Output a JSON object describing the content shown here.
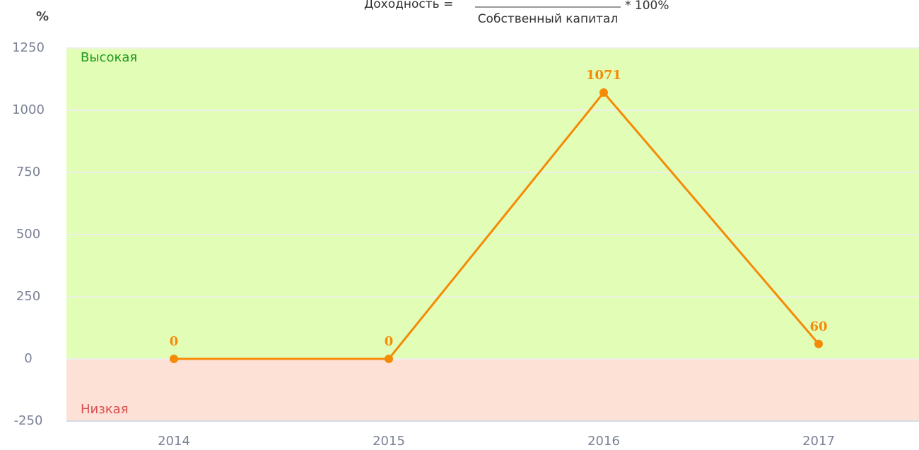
{
  "formula": {
    "left": "Доходность =",
    "denominator": "Собственный капитал",
    "right": "* 100%"
  },
  "chart_data": {
    "type": "line",
    "y_label": "%",
    "categories": [
      "2014",
      "2015",
      "2016",
      "2017"
    ],
    "values": [
      0,
      0,
      1071,
      60
    ],
    "color": "#f58a07",
    "ylim": [
      -250,
      1250
    ],
    "yticks": [
      -250,
      0,
      250,
      500,
      750,
      1000,
      1250
    ],
    "grid": true,
    "zones": [
      {
        "label": "Высокая",
        "from": 0,
        "to": 1250,
        "color": "#e2fdb6",
        "text_color": "#1f9a1f"
      },
      {
        "label": "Низкая",
        "from": -250,
        "to": 0,
        "color": "#fde0d6",
        "text_color": "#d65050"
      }
    ]
  }
}
